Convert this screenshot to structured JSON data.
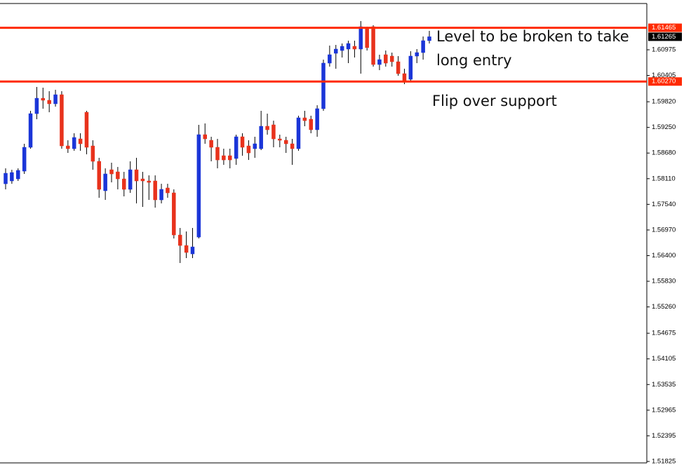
{
  "chart_data": {
    "type": "candlestick",
    "up_color": "#1a35d8",
    "down_color": "#e8321c",
    "level_color": "#ff2a00",
    "ylim": [
      1.51793,
      1.62004
    ],
    "yticks": [
      1.60975,
      1.60405,
      {
        "value": 1.5982,
        "label": "1.59820"
      },
      {
        "value": 1.5925,
        "label": "1.59250"
      },
      {
        "value": 1.5868,
        "label": "1.58680"
      },
      {
        "value": 1.5811,
        "label": "1.58110"
      },
      {
        "value": 1.5754,
        "label": "1.57540"
      },
      {
        "value": 1.5697,
        "label": "1.56970"
      },
      {
        "value": 1.564,
        "label": "1.56400"
      },
      {
        "value": 1.5583,
        "label": "1.55830"
      },
      {
        "value": 1.5526,
        "label": "1.55260"
      },
      1.54675,
      1.54105,
      1.53535,
      1.52965,
      1.52395,
      1.51825
    ],
    "levels": [
      1.61465,
      {
        "value": 1.6027,
        "label": "1.60270"
      }
    ],
    "annotations": [
      "Level to be broken to take",
      "long entry",
      "Flip over support"
    ],
    "series": {
      "open": [
        1.57997,
        1.5806,
        1.58106,
        1.58278,
        1.58808,
        1.59556,
        1.59899,
        1.59853,
        1.59775,
        1.59977,
        1.58839,
        1.58777,
        1.58995,
        1.59587,
        1.58839,
        1.58496,
        1.57842,
        1.58309,
        1.58262,
        1.58106,
        1.57873,
        1.58309,
        1.58106,
        1.5806,
        1.5806,
        1.57639,
        1.57904,
        1.57795,
        1.56859,
        1.56625,
        1.56438,
        1.56812,
        1.59089,
        1.58964,
        1.58808,
        1.58621,
        1.58621,
        1.58559,
        1.59042,
        1.58839,
        1.58777,
        1.58777,
        1.59276,
        1.59307,
        1.58995,
        1.58964,
        1.58886,
        1.58777,
        1.59463,
        1.59432,
        1.59198,
        1.59666,
        1.60679,
        1.60897,
        1.60959,
        1.60991,
        1.61053,
        1.60991,
        1.61458,
        1.61489,
        1.60648,
        1.60866,
        1.60835,
        1.6071,
        1.60445,
        1.6032,
        1.60835,
        1.60913,
        1.61178
      ],
      "high": [
        1.5834,
        1.58309,
        1.5834,
        1.58886,
        1.59619,
        1.60149,
        1.60133,
        1.60055,
        1.60086,
        1.60055,
        1.58964,
        1.5912,
        1.5912,
        1.59619,
        1.58964,
        1.58574,
        1.5834,
        1.58465,
        1.58371,
        1.58262,
        1.58496,
        1.58574,
        1.58262,
        1.58184,
        1.58184,
        1.57997,
        1.57997,
        1.57873,
        1.57015,
        1.56937,
        1.57015,
        1.59307,
        1.59338,
        1.59042,
        1.58995,
        1.58777,
        1.58777,
        1.59089,
        1.5912,
        1.58964,
        1.59042,
        1.59619,
        1.59556,
        1.594,
        1.59089,
        1.59042,
        1.58995,
        1.5951,
        1.59619,
        1.5951,
        1.59743,
        1.60757,
        1.61069,
        1.61084,
        1.61115,
        1.61178,
        1.61178,
        1.61614,
        1.61489,
        1.61521,
        1.60866,
        1.60959,
        1.60913,
        1.60835,
        1.60554,
        1.60944,
        1.60991,
        1.61271,
        1.61396
      ],
      "low": [
        1.57873,
        1.57997,
        1.5806,
        1.58216,
        1.58777,
        1.59432,
        1.59666,
        1.59587,
        1.59712,
        1.58777,
        1.58683,
        1.5873,
        1.5873,
        1.58652,
        1.58309,
        1.57686,
        1.57639,
        1.58028,
        1.57873,
        1.57717,
        1.57795,
        1.57561,
        1.57483,
        1.57639,
        1.57467,
        1.57561,
        1.57686,
        1.56781,
        1.56236,
        1.56345,
        1.56345,
        1.56781,
        1.58886,
        1.58496,
        1.5834,
        1.58418,
        1.5834,
        1.58418,
        1.58621,
        1.58527,
        1.58574,
        1.58746,
        1.59089,
        1.58808,
        1.58808,
        1.58683,
        1.58418,
        1.5873,
        1.59276,
        1.5912,
        1.59042,
        1.59619,
        1.60601,
        1.60554,
        1.60804,
        1.60679,
        1.60804,
        1.60445,
        1.60959,
        1.60601,
        1.60523,
        1.60601,
        1.60601,
        1.60398,
        1.60211,
        1.60273,
        1.60679,
        1.60757,
        1.61115
      ],
      "close": [
        1.58231,
        1.58247,
        1.58294,
        1.58808,
        1.59556,
        1.59899,
        1.59853,
        1.59775,
        1.59977,
        1.58839,
        1.58777,
        1.59026,
        1.58886,
        1.58808,
        1.58496,
        1.57873,
        1.58216,
        1.58216,
        1.58106,
        1.57873,
        1.58309,
        1.5806,
        1.5806,
        1.58028,
        1.57639,
        1.57873,
        1.57795,
        1.56859,
        1.56625,
        1.5647,
        1.56594,
        1.59089,
        1.58995,
        1.58808,
        1.58527,
        1.58527,
        1.58527,
        1.59042,
        1.58808,
        1.58683,
        1.58886,
        1.59276,
        1.59198,
        1.58995,
        1.58964,
        1.58886,
        1.58777,
        1.59463,
        1.594,
        1.59198,
        1.59666,
        1.60679,
        1.60866,
        1.60991,
        1.61053,
        1.61115,
        1.60991,
        1.61489,
        1.61022,
        1.60648,
        1.60757,
        1.60679,
        1.6071,
        1.60445,
        1.60289,
        1.60835,
        1.60913,
        1.61178,
        1.61265
      ]
    }
  }
}
